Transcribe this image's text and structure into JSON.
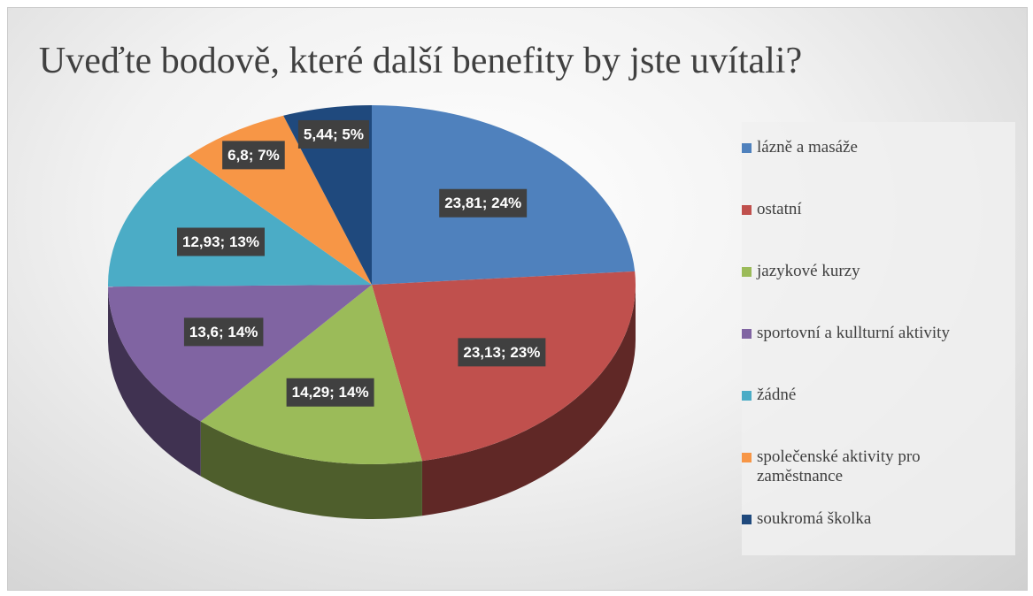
{
  "chart_data": {
    "type": "pie",
    "title": "Uveďte bodově, které další benefity by jste uvítali?",
    "categories": [
      "lázně a masáže",
      "ostatní",
      "jazykové kurzy",
      "sportovní a kullturní aktivity",
      "žádné",
      "společenské aktivity pro zaměstnance",
      "soukromá školka"
    ],
    "values": [
      23.81,
      23.13,
      14.29,
      13.6,
      12.93,
      6.8,
      5.44
    ],
    "value_labels": [
      "23,81; 24%",
      "23,13; 23%",
      "14,29; 14%",
      "13,6; 14%",
      "12,93; 13%",
      "6,8; 7%",
      "5,44; 5%"
    ],
    "colors": [
      "#4f81bd",
      "#c0504d",
      "#9bbb59",
      "#8064a2",
      "#4bacc6",
      "#f79646",
      "#1f497d"
    ],
    "legend": "right"
  }
}
